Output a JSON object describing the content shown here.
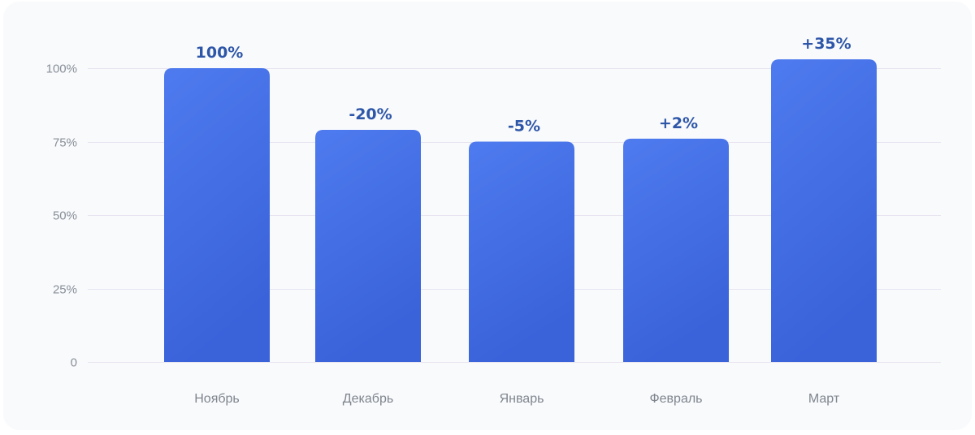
{
  "chart_data": {
    "type": "bar",
    "categories": [
      "Ноябрь",
      "Декабрь",
      "Январь",
      "Февраль",
      "Март"
    ],
    "values": [
      100,
      79,
      75,
      76,
      103
    ],
    "data_labels": [
      "100%",
      "-20%",
      "-5%",
      "+2%",
      "+35%"
    ],
    "y_ticks": [
      0,
      25,
      50,
      75,
      100
    ],
    "y_tick_labels": [
      "0",
      "25%",
      "50%",
      "75%",
      "100%"
    ],
    "ylim": [
      0,
      100
    ],
    "grid": true,
    "bar_color_top": "#4e7bef",
    "bar_color_bottom": "#3a62d9",
    "label_color": "#2e56a8"
  }
}
